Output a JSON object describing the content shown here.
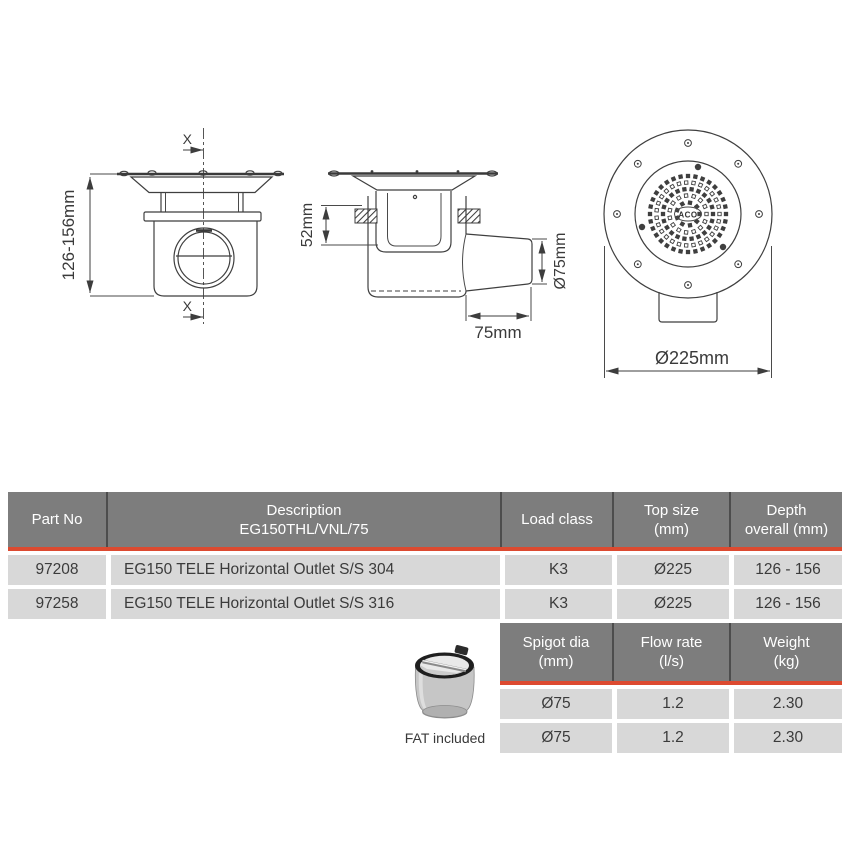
{
  "drawing": {
    "section_marker": "X",
    "dim_depth": "126-156mm",
    "dim_52": "52mm",
    "dim_d75": "Ø75mm",
    "dim_75": "75mm",
    "dim_d225": "Ø225mm",
    "logo": "ACO"
  },
  "table1": {
    "headers": [
      {
        "line1": "Part No",
        "line2": ""
      },
      {
        "line1": "Description",
        "line2": "EG150THL/VNL/75"
      },
      {
        "line1": "Load class",
        "line2": ""
      },
      {
        "line1": "Top size",
        "line2": "(mm)"
      },
      {
        "line1": "Depth",
        "line2": "overall (mm)"
      }
    ],
    "rows": [
      [
        "97208",
        "EG150 TELE Horizontal Outlet S/S 304",
        "K3",
        "Ø225",
        "126 - 156"
      ],
      [
        "97258",
        "EG150 TELE Horizontal Outlet S/S 316",
        "K3",
        "Ø225",
        "126 - 156"
      ]
    ]
  },
  "table2": {
    "headers": [
      {
        "line1": "Spigot dia",
        "line2": "(mm)"
      },
      {
        "line1": "Flow rate",
        "line2": "(l/s)"
      },
      {
        "line1": "Weight",
        "line2": "(kg)"
      }
    ],
    "rows": [
      [
        "Ø75",
        "1.2",
        "2.30"
      ],
      [
        "Ø75",
        "1.2",
        "2.30"
      ]
    ]
  },
  "fat": {
    "caption": "FAT included"
  },
  "colors": {
    "header_gray": "#7d7d7d",
    "row_gray": "#d8d8d8",
    "accent_red": "#dc4a30"
  }
}
